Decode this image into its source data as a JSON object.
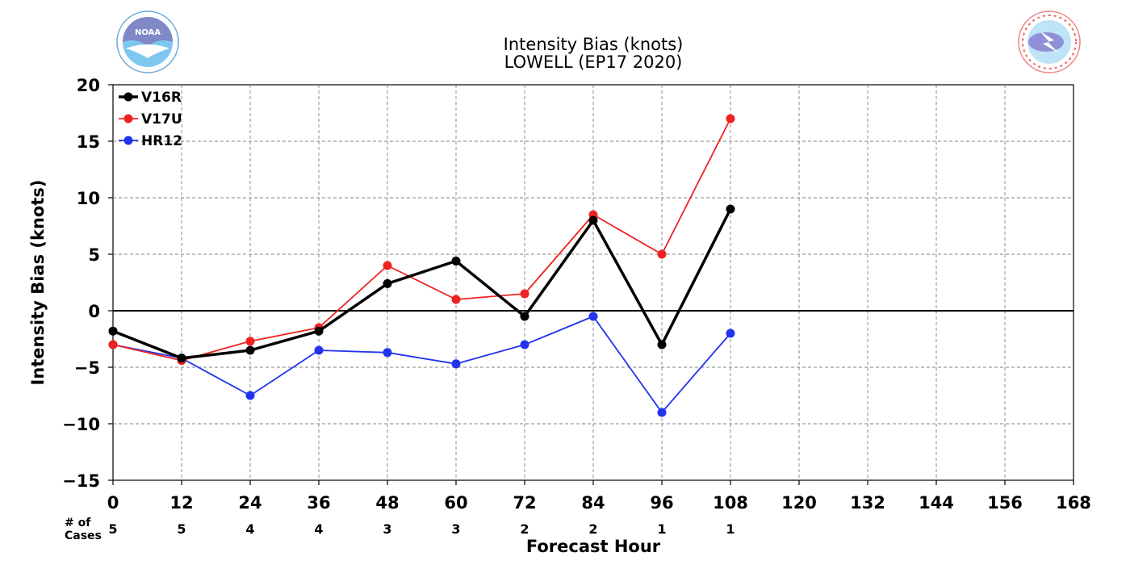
{
  "chart_data": {
    "type": "line",
    "title": "Intensity Bias (knots)",
    "subtitle": "LOWELL (EP17 2020)",
    "xlabel": "Forecast Hour",
    "ylabel": "Intensity Bias (knots)",
    "xlim": [
      0,
      168
    ],
    "ylim": [
      -15,
      20
    ],
    "x_ticks": [
      0,
      12,
      24,
      36,
      48,
      60,
      72,
      84,
      96,
      108,
      120,
      132,
      144,
      156,
      168
    ],
    "y_ticks": [
      -15,
      -10,
      -5,
      0,
      5,
      10,
      15,
      20
    ],
    "y_tick_labels": [
      "−15",
      "−10",
      "−5",
      "0",
      "5",
      "10",
      "15",
      "20"
    ],
    "grid": true,
    "legend_position": "top-left",
    "x": [
      0,
      12,
      24,
      36,
      48,
      60,
      72,
      84,
      96,
      108
    ],
    "series": [
      {
        "name": "V16R",
        "color": "#000000",
        "values": [
          -1.8,
          -4.2,
          -3.5,
          -1.8,
          2.4,
          4.4,
          -0.5,
          8.0,
          -3.0,
          9.0
        ]
      },
      {
        "name": "V17U",
        "color": "#ee2222",
        "values": [
          -3.0,
          -4.4,
          -2.7,
          -1.5,
          4.0,
          1.0,
          1.5,
          8.5,
          5.0,
          17.0
        ]
      },
      {
        "name": "HR12",
        "color": "#2233ee",
        "values": [
          -3.0,
          -4.2,
          -7.5,
          -3.5,
          -3.7,
          -4.7,
          -3.0,
          -0.5,
          -9.0,
          -2.0
        ]
      }
    ],
    "cases_label": [
      "# of",
      "Cases"
    ],
    "cases": [
      5,
      5,
      4,
      4,
      3,
      3,
      2,
      2,
      1,
      1
    ]
  },
  "logos": {
    "left": {
      "name": "NOAA",
      "text": "NOAA",
      "color": "#1e88e5"
    },
    "right": {
      "name": "National Weather Service",
      "text": "NATIONAL WEATHER SERVICE",
      "color": "#e74c3c"
    }
  }
}
